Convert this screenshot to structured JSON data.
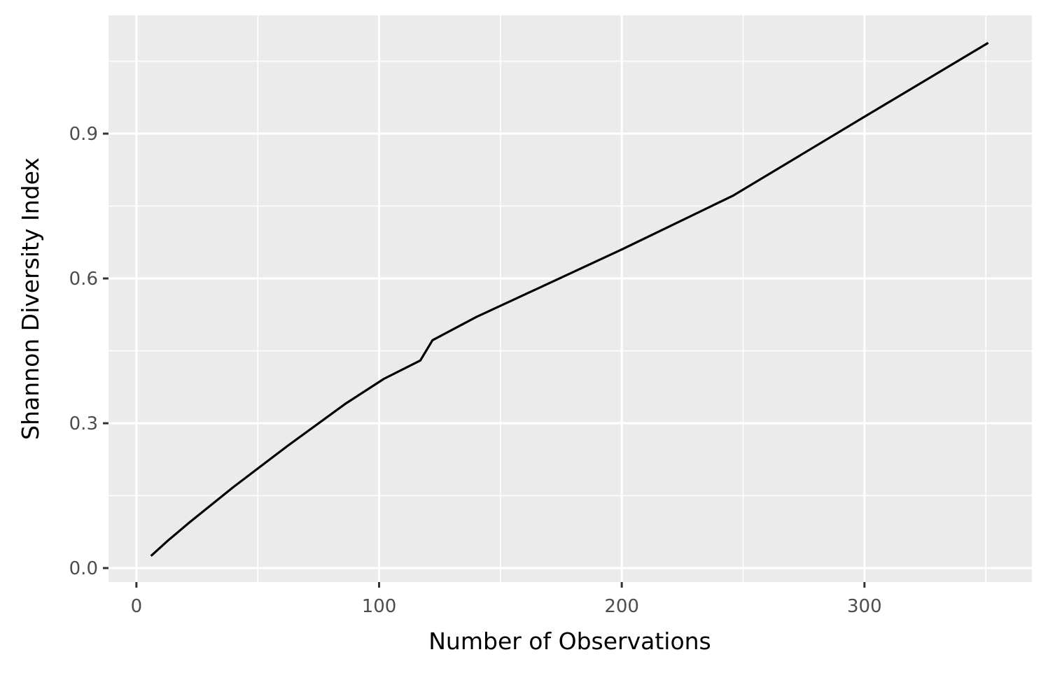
{
  "chart_data": {
    "type": "line",
    "title": "",
    "xlabel": "Number of Observations",
    "ylabel": "Shannon Diversity Index",
    "xlim": [
      -11.5,
      369
    ],
    "ylim": [
      -0.029,
      1.145
    ],
    "x_ticks": [
      0,
      100,
      200,
      300
    ],
    "x_tick_labels": [
      "0",
      "100",
      "200",
      "300"
    ],
    "y_ticks": [
      0.0,
      0.3,
      0.6,
      0.9
    ],
    "y_tick_labels": [
      "0.0",
      "0.3",
      "0.6",
      "0.9"
    ],
    "grid": true,
    "background": "#ebebeb",
    "grid_color": "#ffffff",
    "line_color": "#000000",
    "series": [
      {
        "x": [
          6,
          13,
          22,
          40,
          62,
          86,
          102,
          117,
          122,
          140,
          170,
          200,
          246,
          300,
          351
        ],
        "y": [
          0.025,
          0.057,
          0.095,
          0.168,
          0.252,
          0.34,
          0.392,
          0.43,
          0.472,
          0.52,
          0.59,
          0.66,
          0.772,
          0.935,
          1.088
        ]
      }
    ]
  }
}
